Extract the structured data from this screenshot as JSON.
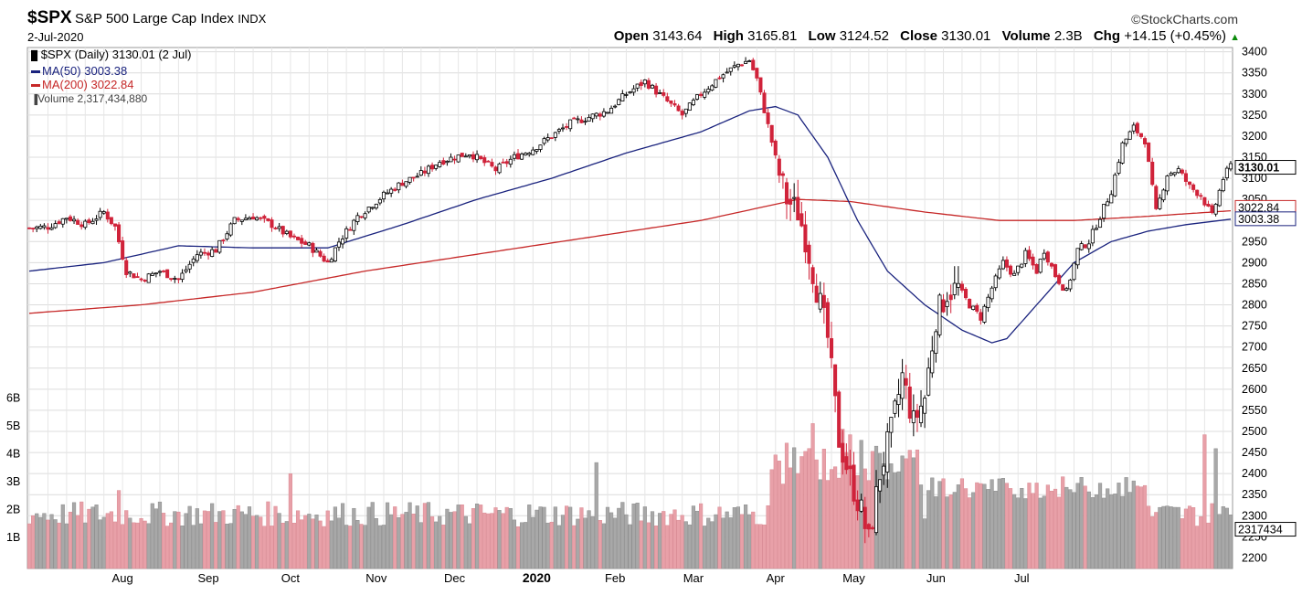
{
  "header": {
    "ticker": "$SPX",
    "name": "S&P 500 Large Cap Index",
    "exchange": "INDX",
    "date": "2-Jul-2020",
    "brand": "©StockCharts.com",
    "open_label": "Open",
    "open": "3143.64",
    "high_label": "High",
    "high": "3165.81",
    "low_label": "Low",
    "low": "3124.52",
    "close_label": "Close",
    "close": "3130.01",
    "volume_label": "Volume",
    "volume": "2.3B",
    "chg_label": "Chg",
    "chg": "+14.15 (+0.45%)"
  },
  "legend": {
    "title": "$SPX (Daily) 3130.01 (2 Jul)",
    "ma50": "MA(50) 3003.38",
    "ma200": "MA(200) 3022.84",
    "volume": "Volume 2,317,434,880"
  },
  "colors": {
    "up": "#000000",
    "down": "#d0233a",
    "ma50": "#1a237e",
    "ma200": "#c62828",
    "vol_up": "#a8a8a8",
    "vol_down": "#e8a0a8",
    "grid": "#dcdcdc"
  },
  "chart_data": {
    "type": "candlestick",
    "ylim": [
      2175,
      3410
    ],
    "yticks": [
      2200,
      2250,
      2300,
      2350,
      2400,
      2450,
      2500,
      2550,
      2600,
      2650,
      2700,
      2750,
      2800,
      2850,
      2900,
      2950,
      3000,
      3050,
      3100,
      3150,
      3200,
      3250,
      3300,
      3350,
      3400
    ],
    "vol_ticks": [
      "1B",
      "2B",
      "3B",
      "4B",
      "5B",
      "6B"
    ],
    "month_labels": [
      "Aug",
      "Sep",
      "Oct",
      "Nov",
      "Dec",
      "2020",
      "Feb",
      "Mar",
      "Apr",
      "May",
      "Jun",
      "Jul"
    ],
    "last_price": "3130.01",
    "ma200_label": "3022.84",
    "ma50_label": "3003.38",
    "volume_label": "2317434",
    "close_anchors": [
      [
        0,
        2982
      ],
      [
        5,
        2985
      ],
      [
        10,
        3008
      ],
      [
        15,
        2990
      ],
      [
        20,
        3020
      ],
      [
        23,
        2985
      ],
      [
        26,
        2880
      ],
      [
        30,
        2860
      ],
      [
        35,
        2880
      ],
      [
        40,
        2860
      ],
      [
        45,
        2920
      ],
      [
        50,
        2930
      ],
      [
        55,
        3000
      ],
      [
        60,
        3010
      ],
      [
        65,
        2990
      ],
      [
        70,
        2960
      ],
      [
        75,
        2940
      ],
      [
        80,
        2900
      ],
      [
        83,
        2950
      ],
      [
        88,
        3010
      ],
      [
        95,
        3060
      ],
      [
        100,
        3090
      ],
      [
        105,
        3110
      ],
      [
        110,
        3140
      ],
      [
        118,
        3160
      ],
      [
        125,
        3120
      ],
      [
        130,
        3150
      ],
      [
        135,
        3170
      ],
      [
        145,
        3230
      ],
      [
        155,
        3260
      ],
      [
        160,
        3300
      ],
      [
        165,
        3330
      ],
      [
        170,
        3290
      ],
      [
        175,
        3250
      ],
      [
        180,
        3300
      ],
      [
        185,
        3340
      ],
      [
        190,
        3370
      ],
      [
        193,
        3380
      ],
      [
        195,
        3335
      ],
      [
        198,
        3225
      ],
      [
        201,
        3110
      ],
      [
        203,
        3050
      ],
      [
        206,
        3020
      ],
      [
        208,
        2960
      ],
      [
        211,
        2840
      ],
      [
        214,
        2720
      ],
      [
        217,
        2480
      ],
      [
        220,
        2390
      ],
      [
        223,
        2310
      ],
      [
        225,
        2240
      ],
      [
        228,
        2400
      ],
      [
        231,
        2500
      ],
      [
        234,
        2630
      ],
      [
        237,
        2520
      ],
      [
        240,
        2580
      ],
      [
        243,
        2770
      ],
      [
        246,
        2830
      ],
      [
        249,
        2840
      ],
      [
        252,
        2800
      ],
      [
        255,
        2770
      ],
      [
        258,
        2840
      ],
      [
        261,
        2900
      ],
      [
        264,
        2870
      ],
      [
        267,
        2920
      ],
      [
        270,
        2880
      ],
      [
        272,
        2930
      ],
      [
        275,
        2870
      ],
      [
        278,
        2830
      ],
      [
        281,
        2930
      ],
      [
        284,
        2950
      ],
      [
        287,
        3010
      ],
      [
        290,
        3070
      ],
      [
        293,
        3180
      ],
      [
        296,
        3220
      ],
      [
        299,
        3190
      ],
      [
        302,
        3020
      ],
      [
        305,
        3110
      ],
      [
        308,
        3120
      ],
      [
        311,
        3080
      ],
      [
        314,
        3060
      ],
      [
        317,
        3010
      ],
      [
        320,
        3100
      ],
      [
        322,
        3130
      ]
    ],
    "ma50_anchors": [
      [
        0,
        2880
      ],
      [
        20,
        2900
      ],
      [
        40,
        2940
      ],
      [
        60,
        2935
      ],
      [
        80,
        2935
      ],
      [
        100,
        2990
      ],
      [
        120,
        3050
      ],
      [
        140,
        3100
      ],
      [
        160,
        3160
      ],
      [
        180,
        3210
      ],
      [
        193,
        3260
      ],
      [
        200,
        3270
      ],
      [
        206,
        3250
      ],
      [
        214,
        3150
      ],
      [
        222,
        3000
      ],
      [
        230,
        2880
      ],
      [
        240,
        2800
      ],
      [
        250,
        2740
      ],
      [
        258,
        2710
      ],
      [
        262,
        2720
      ],
      [
        270,
        2800
      ],
      [
        280,
        2900
      ],
      [
        290,
        2950
      ],
      [
        300,
        2975
      ],
      [
        310,
        2990
      ],
      [
        322,
        3003
      ]
    ],
    "ma200_anchors": [
      [
        0,
        2780
      ],
      [
        30,
        2800
      ],
      [
        60,
        2830
      ],
      [
        90,
        2880
      ],
      [
        120,
        2920
      ],
      [
        150,
        2960
      ],
      [
        180,
        3000
      ],
      [
        206,
        3050
      ],
      [
        220,
        3045
      ],
      [
        240,
        3020
      ],
      [
        260,
        3000
      ],
      [
        280,
        3000
      ],
      [
        300,
        3010
      ],
      [
        322,
        3023
      ]
    ],
    "volume_spikes": [
      [
        24,
        2.8
      ],
      [
        70,
        3.4
      ],
      [
        152,
        3.8
      ],
      [
        208,
        4.2
      ],
      [
        210,
        5.2
      ],
      [
        218,
        5.0
      ],
      [
        220,
        4.8
      ],
      [
        223,
        4.6
      ],
      [
        226,
        4.2
      ],
      [
        315,
        4.8
      ],
      [
        318,
        4.3
      ]
    ]
  }
}
